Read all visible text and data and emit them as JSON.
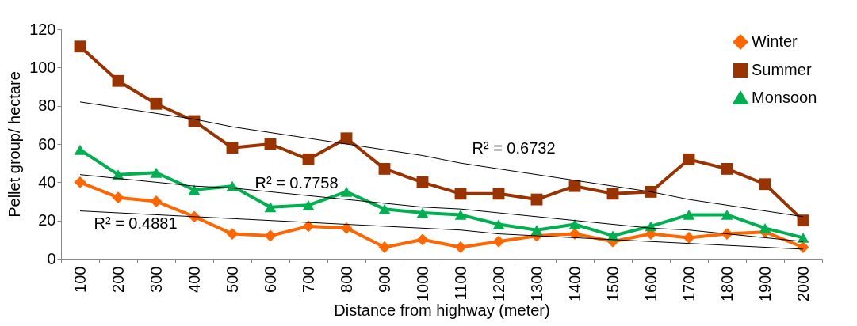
{
  "chart_data": {
    "type": "line",
    "xlabel": "Distance from highway (meter)",
    "ylabel": "Pellet group/ hectare",
    "categories": [
      "100",
      "200",
      "300",
      "400",
      "500",
      "600",
      "700",
      "800",
      "900",
      "1000",
      "1100",
      "1200",
      "1300",
      "1400",
      "1500",
      "1600",
      "1700",
      "1800",
      "1900",
      "2000"
    ],
    "ylim": [
      0,
      120
    ],
    "yticks": [
      0,
      20,
      40,
      60,
      80,
      100,
      120
    ],
    "grid": false,
    "legend": "top right",
    "series": [
      {
        "name": "Winter",
        "color": "#ff6600",
        "marker": "diamond",
        "values": [
          40,
          32,
          30,
          22,
          13,
          12,
          17,
          16,
          6,
          10,
          6,
          9,
          12,
          13,
          9,
          13,
          11,
          13,
          14,
          6
        ]
      },
      {
        "name": "Summer",
        "color": "#993300",
        "marker": "square",
        "values": [
          111,
          93,
          81,
          72,
          58,
          60,
          52,
          63,
          47,
          40,
          34,
          34,
          31,
          38,
          34,
          35,
          52,
          47,
          39,
          20
        ]
      },
      {
        "name": "Monsoon",
        "color": "#00b050",
        "marker": "triangle",
        "values": [
          57,
          44,
          45,
          36,
          38,
          27,
          28,
          35,
          26,
          24,
          23,
          18,
          15,
          18,
          12,
          17,
          23,
          23,
          16,
          11
        ]
      },
      {
        "type": "line",
        "color": "#000000",
        "values": [
          82,
          79,
          76,
          73,
          69,
          66,
          63,
          60,
          57,
          54,
          50,
          47,
          44,
          41,
          38,
          35,
          31,
          28,
          25,
          22
        ]
      },
      {
        "type": "line",
        "color": "#000000",
        "values": [
          44,
          42,
          40,
          38,
          37,
          35,
          33,
          31,
          29,
          27,
          26,
          24,
          22,
          20,
          18,
          16,
          15,
          13,
          11,
          9
        ]
      },
      {
        "type": "line",
        "color": "#000000",
        "values": [
          25,
          24,
          23,
          22,
          21,
          20,
          19,
          18,
          17,
          16,
          15,
          13,
          12,
          11,
          10,
          9,
          8,
          7,
          6,
          5
        ]
      }
    ],
    "annotations": [
      "R² = 0.6732",
      "R² = 0.7758",
      "R² = 0.4881"
    ]
  }
}
